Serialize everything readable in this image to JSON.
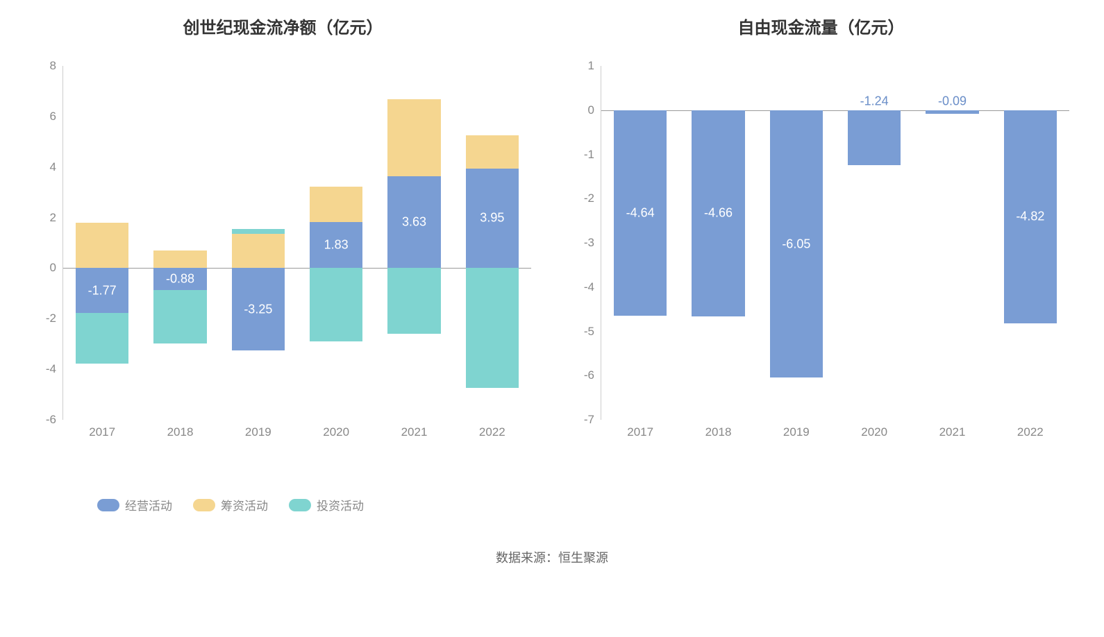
{
  "left_chart": {
    "type": "stacked-bar",
    "title": "创世纪现金流净额（亿元）",
    "title_fontsize": 24,
    "title_color": "#333333",
    "categories": [
      "2017",
      "2018",
      "2019",
      "2020",
      "2021",
      "2022"
    ],
    "ylim": [
      -6,
      8
    ],
    "ytick_step": 2,
    "yticks": [
      -6,
      -4,
      -2,
      0,
      2,
      4,
      6,
      8
    ],
    "axis_color": "#cccccc",
    "zero_line_color": "#999999",
    "tick_label_color": "#888888",
    "tick_fontsize": 17,
    "bar_width_ratio": 0.68,
    "series": [
      {
        "name": "经营活动",
        "color": "#7a9dd4",
        "values": [
          -1.77,
          -0.88,
          -3.25,
          1.83,
          3.63,
          3.95
        ],
        "show_label": true
      },
      {
        "name": "筹资活动",
        "color": "#f5d690",
        "values": [
          1.8,
          0.7,
          1.35,
          1.4,
          3.05,
          1.3
        ],
        "show_label": false
      },
      {
        "name": "投资活动",
        "color": "#7fd4d0",
        "values": [
          -2.0,
          -2.1,
          0.2,
          -2.9,
          -2.6,
          -4.75
        ],
        "show_label": false
      }
    ],
    "data_label_fontsize": 18,
    "data_label_color": "#ffffff",
    "legend": {
      "items": [
        {
          "label": "经营活动",
          "color": "#7a9dd4"
        },
        {
          "label": "筹资活动",
          "color": "#f5d690"
        },
        {
          "label": "投资活动",
          "color": "#7fd4d0"
        }
      ],
      "fontsize": 17,
      "label_color": "#888888"
    }
  },
  "right_chart": {
    "type": "bar",
    "title": "自由现金流量（亿元）",
    "title_fontsize": 24,
    "title_color": "#333333",
    "categories": [
      "2017",
      "2018",
      "2019",
      "2020",
      "2021",
      "2022"
    ],
    "ylim": [
      -7,
      1
    ],
    "ytick_step": 1,
    "yticks": [
      -7,
      -6,
      -5,
      -4,
      -3,
      -2,
      -1,
      0,
      1
    ],
    "axis_color": "#cccccc",
    "zero_line_color": "#999999",
    "tick_label_color": "#888888",
    "tick_fontsize": 17,
    "bar_width_ratio": 0.68,
    "bar_color": "#7a9dd4",
    "values": [
      -4.64,
      -4.66,
      -6.05,
      -1.24,
      -0.09,
      -4.82
    ],
    "data_label_fontsize": 18,
    "data_label_color_inside": "#ffffff",
    "data_label_color_outside": "#6a8ec8",
    "label_outside_threshold": 1.5
  },
  "source": {
    "prefix": "数据来源：",
    "text": "恒生聚源",
    "fontsize": 18,
    "color": "#666666"
  },
  "background_color": "#ffffff"
}
